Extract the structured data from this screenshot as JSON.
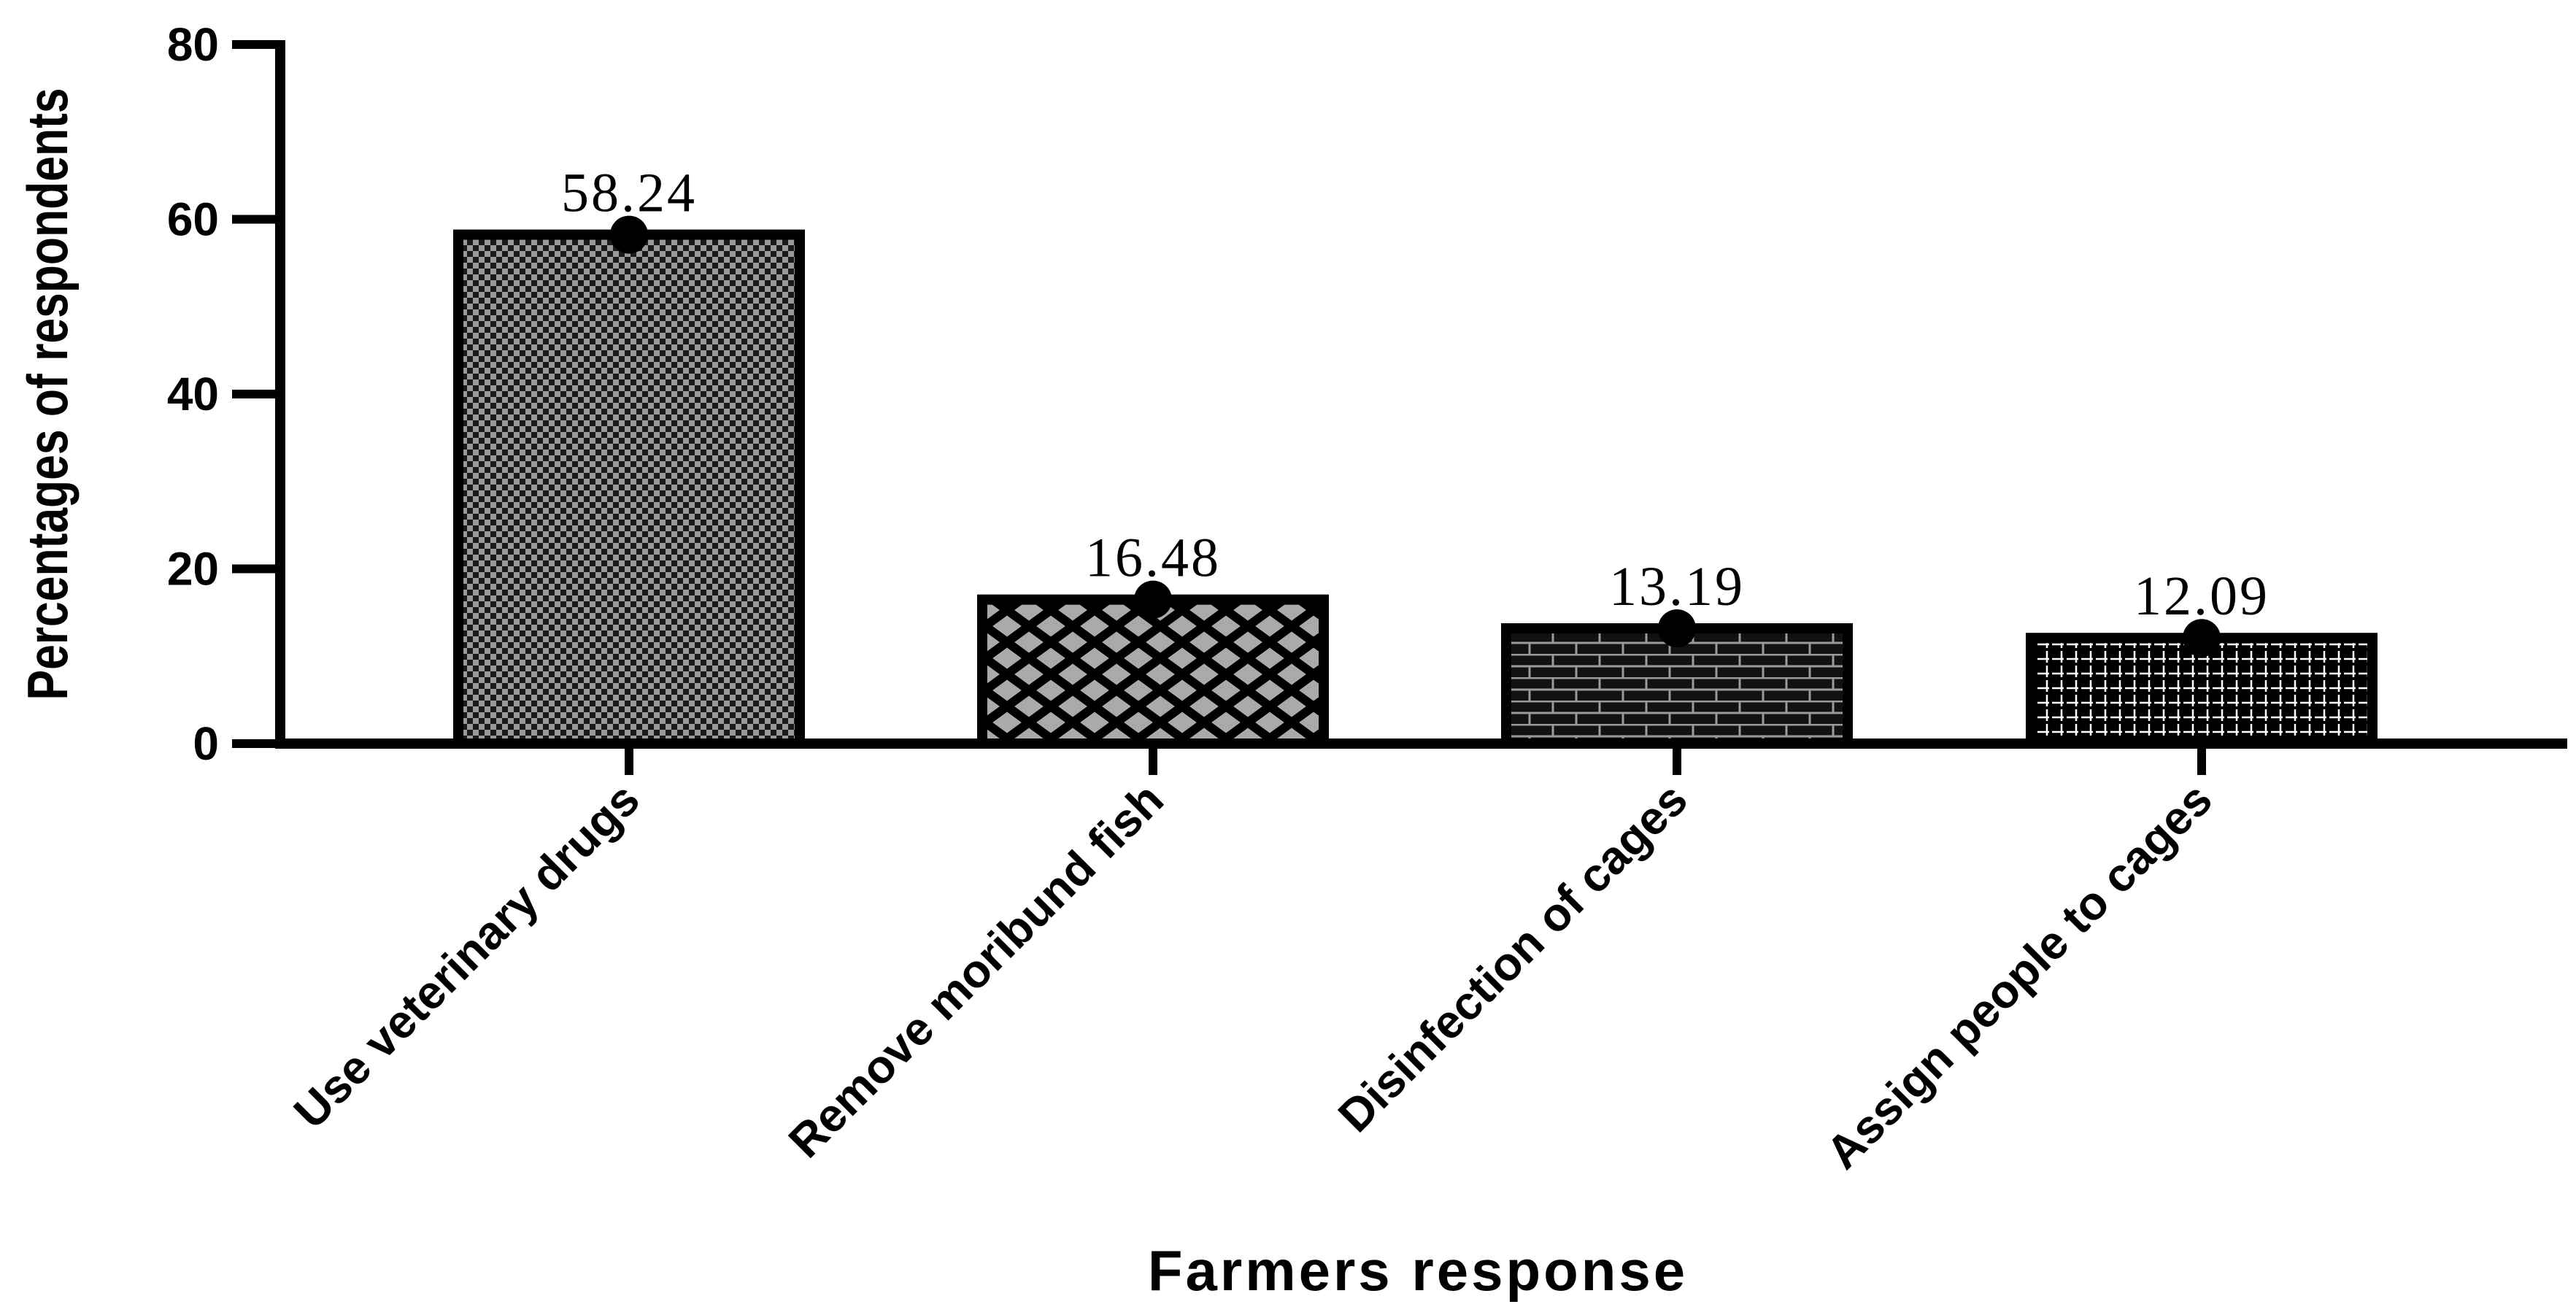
{
  "chart_data": {
    "type": "bar",
    "categories": [
      "Use veterinary drugs",
      "Remove moribund fish",
      "Disinfection of cages",
      "Assign people to cages"
    ],
    "values": [
      58.24,
      16.48,
      13.19,
      12.09
    ],
    "data_labels": [
      "58.24",
      "16.48",
      "13.19",
      "12.09"
    ],
    "xlabel": "Farmers response",
    "ylabel": "Percentages of respondents",
    "ylim": [
      0,
      80
    ],
    "yticks": [
      "0",
      "20",
      "40",
      "60",
      "80"
    ],
    "grid": false,
    "patterns": [
      "checker",
      "diamond-lattice",
      "brick",
      "grid-dash"
    ],
    "colors": {
      "bar_edge": "#000000",
      "pattern_light": "#9a9a9a",
      "text": "#000000"
    }
  }
}
